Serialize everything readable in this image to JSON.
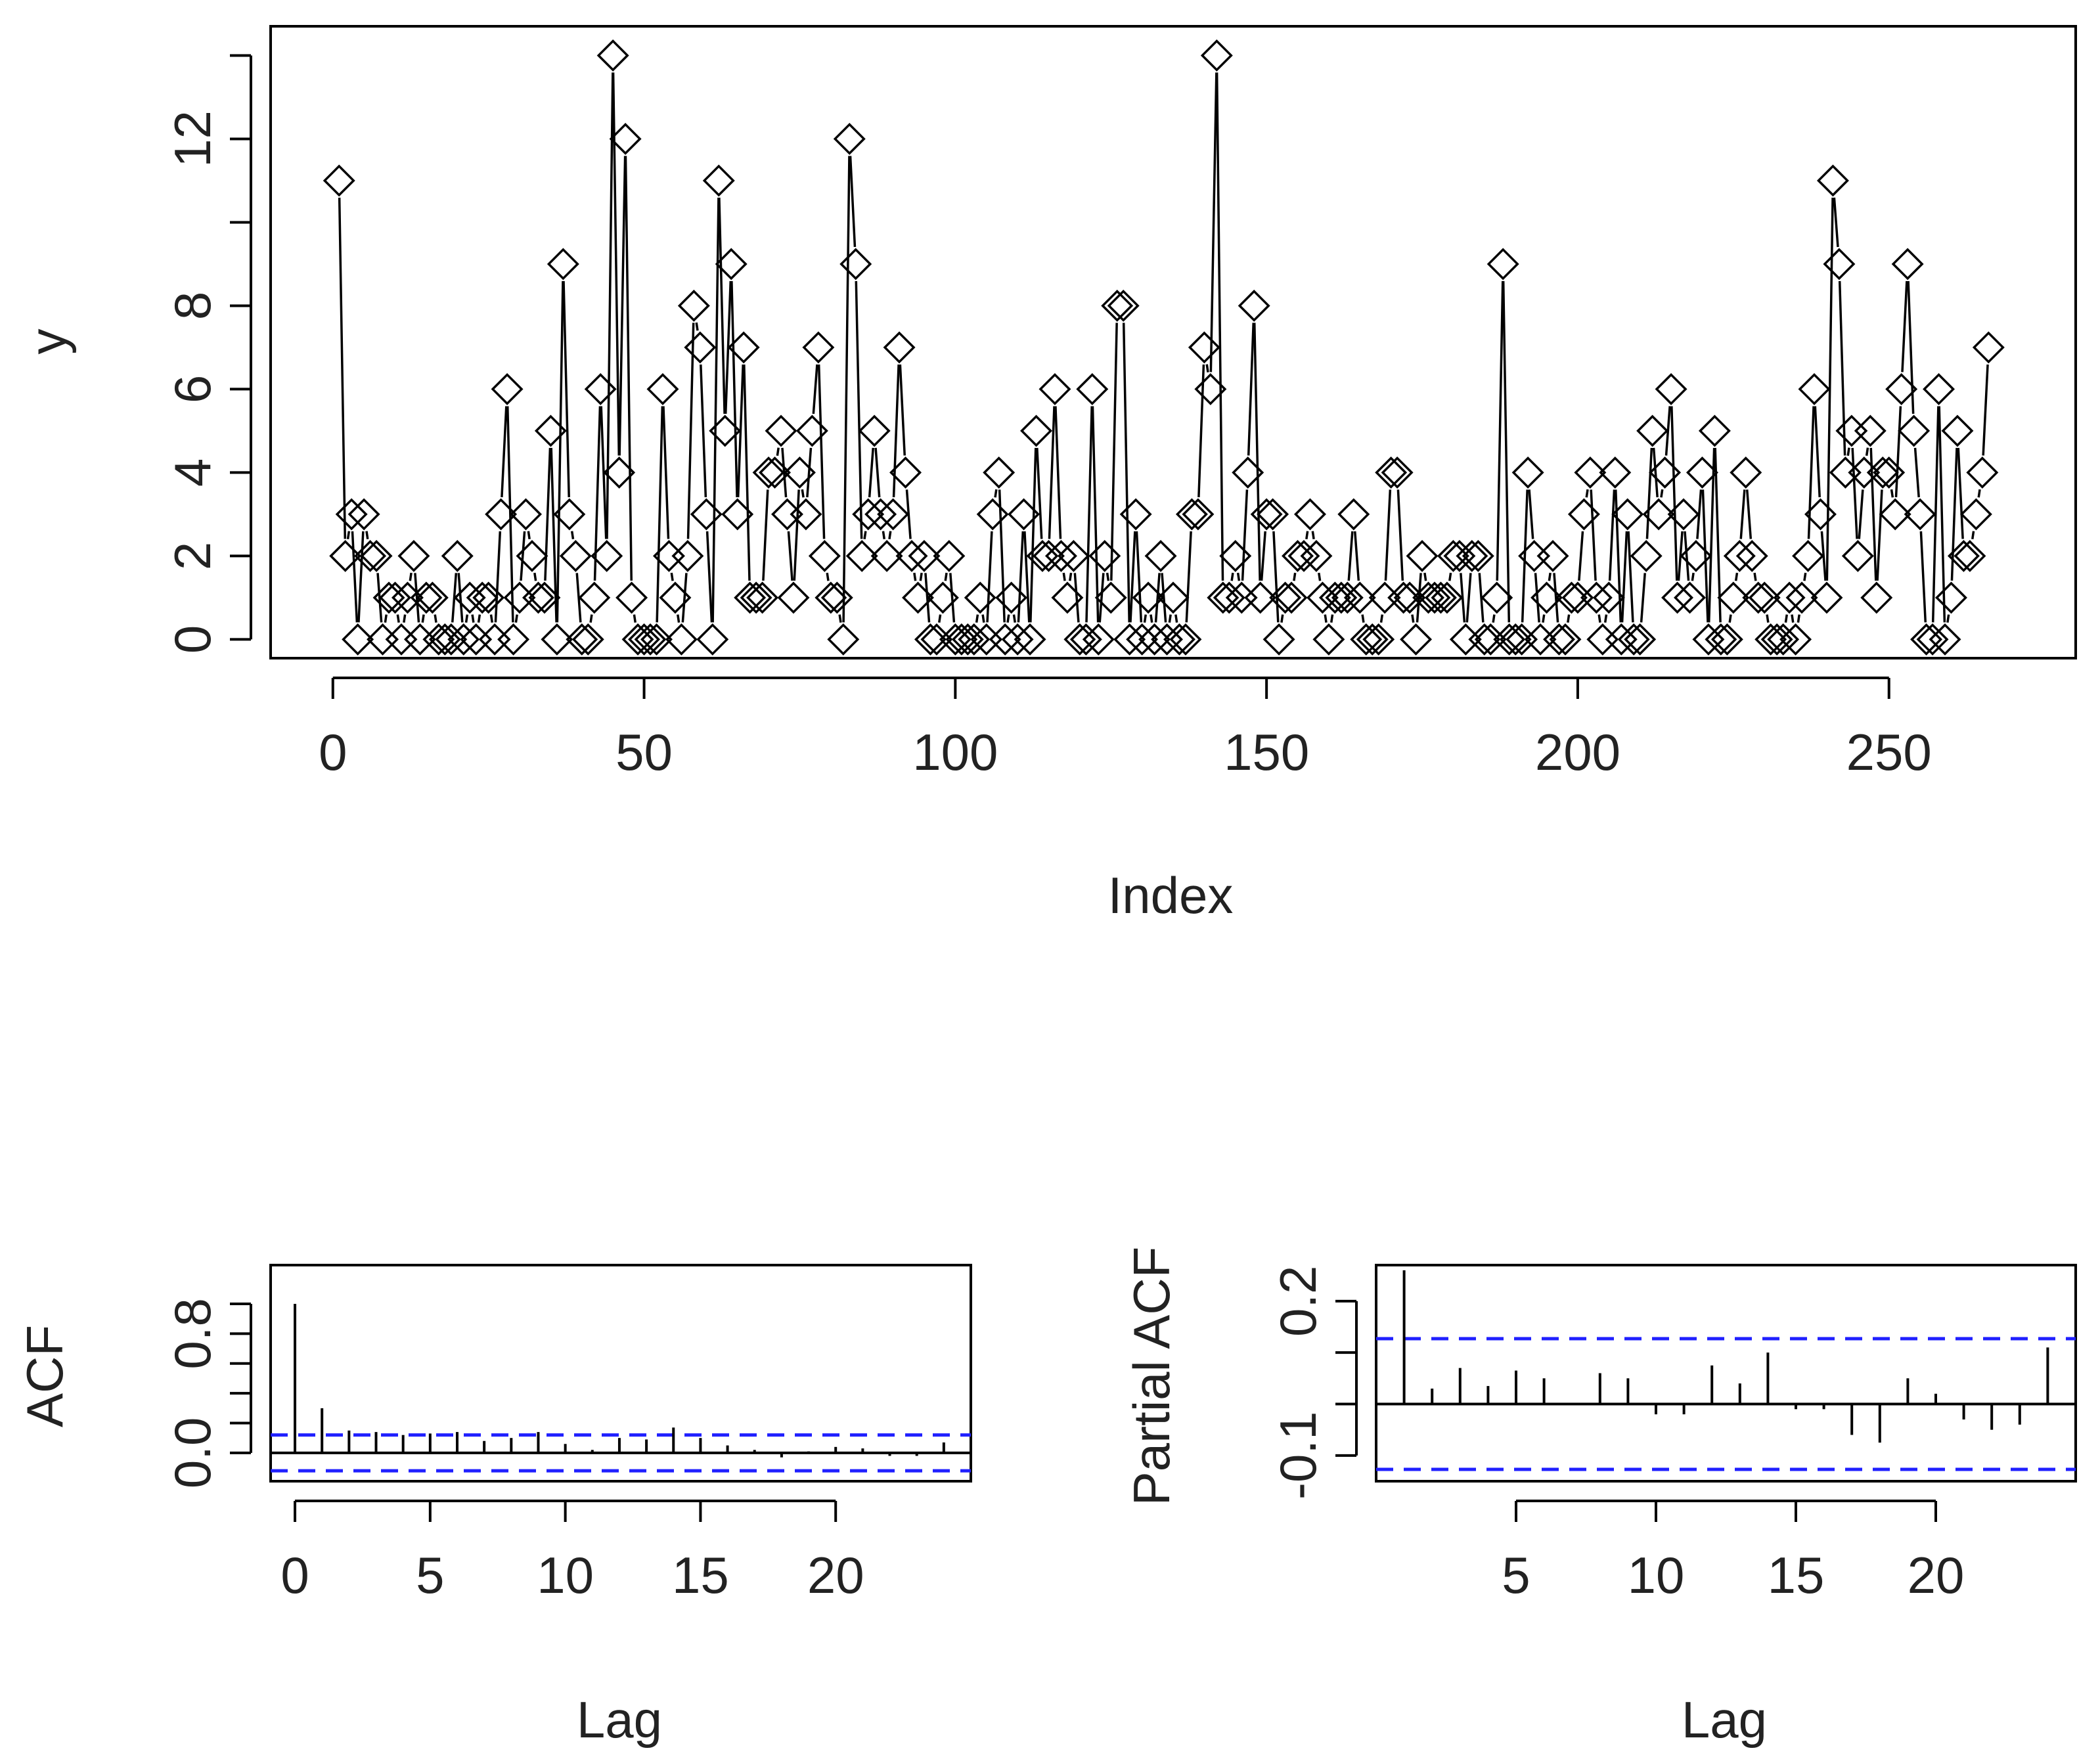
{
  "chart_data": [
    {
      "type": "line",
      "style": "type='b' (points + connecting lines)",
      "title": "",
      "xlabel": "Index",
      "ylabel": "y",
      "xlim": [
        -10,
        280
      ],
      "ylim": [
        -0.45,
        14.7
      ],
      "x_ticks": [
        0,
        50,
        100,
        150,
        200,
        250
      ],
      "y_ticks": [
        0,
        2,
        4,
        6,
        8,
        10,
        12,
        14
      ],
      "y_tick_labels": [
        "0",
        "2",
        "4",
        "6",
        "8",
        "",
        "12",
        ""
      ],
      "marker": "open-diamond",
      "x_start": 1,
      "values": [
        11,
        2,
        3,
        0,
        3,
        2,
        2,
        0,
        1,
        1,
        0,
        1,
        2,
        0,
        1,
        1,
        0,
        0,
        0,
        2,
        0,
        1,
        0,
        1,
        1,
        0,
        3,
        6,
        0,
        1,
        3,
        2,
        1,
        1,
        5,
        0,
        9,
        3,
        2,
        0,
        0,
        1,
        6,
        2,
        14,
        4,
        12,
        1,
        0,
        0,
        0,
        0,
        6,
        2,
        1,
        0,
        2,
        8,
        7,
        3,
        0,
        11,
        5,
        9,
        3,
        7,
        1,
        1,
        1,
        4,
        4,
        5,
        3,
        1,
        4,
        3,
        5,
        7,
        2,
        1,
        1,
        0,
        12,
        9,
        2,
        3,
        5,
        3,
        2,
        3,
        7,
        4,
        2,
        1,
        2,
        0,
        0,
        1,
        2,
        0,
        0,
        0,
        0,
        1,
        0,
        3,
        4,
        0,
        1,
        0,
        3,
        0,
        5,
        2,
        2,
        6,
        2,
        1,
        2,
        0,
        0,
        6,
        0,
        2,
        1,
        8,
        8,
        0,
        3,
        0,
        1,
        0,
        2,
        0,
        1,
        0,
        0,
        3,
        3,
        7,
        6,
        14,
        1,
        1,
        2,
        1,
        4,
        8,
        1,
        3,
        3,
        0,
        1,
        1,
        2,
        2,
        3,
        2,
        1,
        0,
        1,
        1,
        1,
        3,
        1,
        0,
        0,
        0,
        1,
        4,
        4,
        1,
        1,
        0,
        2,
        1,
        1,
        1,
        1,
        2,
        2,
        0,
        2,
        2,
        0,
        0,
        1,
        9,
        0,
        0,
        0,
        4,
        2,
        0,
        1,
        2,
        0,
        0,
        1,
        1,
        3,
        4,
        1,
        0,
        1,
        4,
        0,
        3,
        0,
        0,
        2,
        5,
        3,
        4,
        6,
        1,
        3,
        1,
        2,
        4,
        0,
        5,
        0,
        0,
        1,
        2,
        4,
        2,
        1,
        1,
        0,
        0,
        0,
        1,
        0,
        1,
        2,
        6,
        3,
        1,
        11,
        9,
        4,
        5,
        2,
        4,
        5,
        1,
        4,
        4,
        3,
        6,
        9,
        5,
        3,
        0,
        0,
        6,
        0,
        1,
        5,
        2,
        2,
        3,
        4,
        7
      ]
    },
    {
      "type": "bar",
      "style": "acf spikes",
      "title": "",
      "xlabel": "Lag",
      "ylabel": "ACF",
      "xlim": [
        -0.9,
        25
      ],
      "ylim": [
        -0.19,
        1.26
      ],
      "x_ticks": [
        0,
        5,
        10,
        15,
        20
      ],
      "y_ticks": [
        0.0,
        0.2,
        0.4,
        0.6,
        0.8,
        1.0
      ],
      "y_tick_labels": [
        "0.0",
        "",
        "",
        "",
        "0.8",
        ""
      ],
      "lags": [
        0,
        1,
        2,
        3,
        4,
        5,
        6,
        7,
        8,
        9,
        10,
        11,
        12,
        13,
        14,
        15,
        16,
        17,
        18,
        19,
        20,
        21,
        22,
        23,
        24
      ],
      "values": [
        1.0,
        0.3,
        0.15,
        0.14,
        0.12,
        0.13,
        0.14,
        0.08,
        0.1,
        0.14,
        0.06,
        0.02,
        0.1,
        0.09,
        0.17,
        0.1,
        0.05,
        0.02,
        -0.03,
        0.01,
        0.04,
        0.03,
        -0.02,
        -0.02,
        0.07
      ],
      "confidence_band": 0.12,
      "band_color": "#2020ff"
    },
    {
      "type": "bar",
      "style": "pacf spikes",
      "title": "",
      "xlabel": "Lag",
      "ylabel": "Partial ACF",
      "xlim": [
        0,
        25
      ],
      "ylim": [
        -0.15,
        0.27
      ],
      "x_ticks": [
        5,
        10,
        15,
        20
      ],
      "y_ticks": [
        -0.1,
        0.0,
        0.1,
        0.2
      ],
      "y_tick_labels": [
        "-0.1",
        "",
        "",
        "0.2"
      ],
      "lags": [
        1,
        2,
        3,
        4,
        5,
        6,
        7,
        8,
        9,
        10,
        11,
        12,
        13,
        14,
        15,
        16,
        17,
        18,
        19,
        20,
        21,
        22,
        23,
        24
      ],
      "values": [
        0.26,
        0.03,
        0.07,
        0.035,
        0.065,
        0.05,
        0.0,
        0.06,
        0.05,
        -0.02,
        -0.02,
        0.075,
        0.04,
        0.1,
        -0.01,
        -0.01,
        -0.06,
        -0.075,
        0.05,
        0.02,
        -0.03,
        -0.05,
        -0.04,
        0.11
      ],
      "confidence_band": 0.127,
      "band_color": "#2020ff"
    }
  ]
}
